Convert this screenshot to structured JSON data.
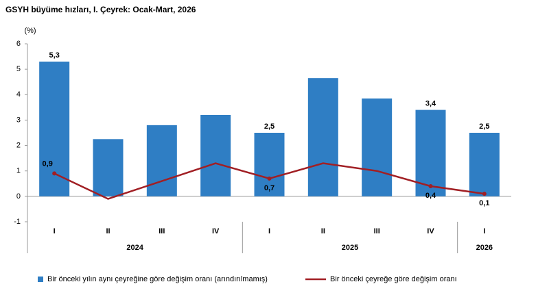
{
  "chart_data": {
    "type": "bar",
    "title": "GSYH büyüme hızları, I. Çeyrek: Ocak-Mart, 2026",
    "y_label": "(%)",
    "categories": [
      "I",
      "II",
      "III",
      "IV",
      "I",
      "II",
      "III",
      "IV",
      "I"
    ],
    "groups": [
      {
        "label": "2024",
        "span": 4
      },
      {
        "label": "2025",
        "span": 4
      },
      {
        "label": "2026",
        "span": 1
      }
    ],
    "series": [
      {
        "name": "Bir önceki yılın aynı çeyreğine göre değişim oranı (arındırılmamış)",
        "type": "bar",
        "color": "#2f7ec4",
        "values": [
          5.3,
          2.25,
          2.8,
          3.2,
          2.5,
          4.65,
          3.85,
          3.4,
          2.5
        ],
        "value_labels": [
          "5,3",
          null,
          null,
          null,
          "2,5",
          null,
          null,
          "3,4",
          "2,5"
        ]
      },
      {
        "name": "Bir önceki çeyreğe göre değişim oranı",
        "type": "line",
        "color": "#a11f24",
        "values": [
          0.9,
          -0.1,
          0.6,
          1.3,
          0.7,
          1.3,
          1.0,
          0.4,
          0.1
        ],
        "value_labels": [
          "0,9",
          null,
          null,
          null,
          "0,7",
          null,
          null,
          "0,4",
          "0,1"
        ]
      }
    ],
    "ylim": [
      -1,
      6
    ],
    "yticks": [
      -1,
      0,
      1,
      2,
      3,
      4,
      5,
      6
    ],
    "legend": "bottom"
  }
}
